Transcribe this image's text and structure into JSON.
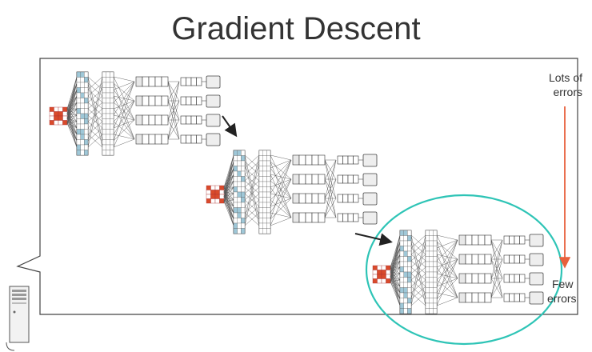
{
  "title": "Gradient Descent",
  "top_label": [
    "Lots of",
    "errors"
  ],
  "bottom_label": [
    "Few",
    "errors"
  ],
  "colors": {
    "highlight_ellipse": "#2ec4b6",
    "error_arrow": "#e8603c",
    "input_red": "#d94a2b",
    "layer_blue": "#9fc8d8",
    "line": "#555555"
  },
  "networks": [
    {
      "stage": "start"
    },
    {
      "stage": "middle"
    },
    {
      "stage": "end",
      "highlighted": true
    }
  ]
}
